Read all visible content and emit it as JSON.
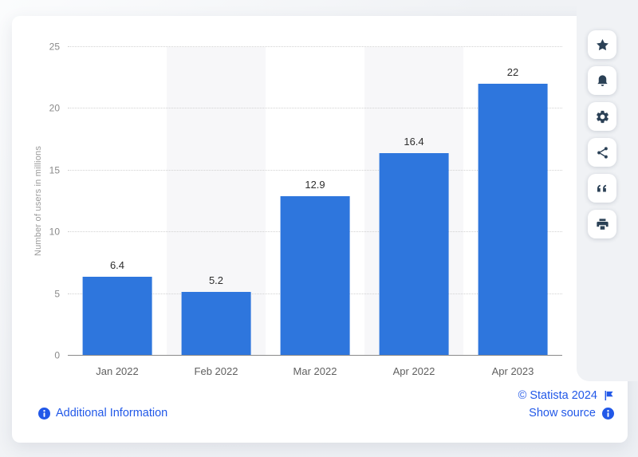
{
  "chart_data": {
    "type": "bar",
    "categories": [
      "Jan 2022",
      "Feb 2022",
      "Mar 2022",
      "Apr 2022",
      "Apr 2023"
    ],
    "values": [
      6.4,
      5.2,
      12.9,
      16.4,
      22
    ],
    "value_labels": [
      "6.4",
      "5.2",
      "12.9",
      "16.4",
      "22"
    ],
    "title": "",
    "xlabel": "",
    "ylabel": "Number of users in millions",
    "ylim": [
      0,
      25
    ],
    "yticks": [
      25,
      20,
      15,
      10,
      5,
      0
    ],
    "grid": "horizontal-dotted",
    "legend": "none",
    "bar_color": "#2e76dd",
    "band_color": "#f7f7f9",
    "banded_column_indexes": [
      1,
      3
    ]
  },
  "y_axis": {
    "title": "Number of users in millions"
  },
  "footer": {
    "additional_information": "Additional Information",
    "copyright": "© Statista 2024",
    "show_source": "Show source",
    "link_color": "#2158e8"
  },
  "toolbar": {
    "icon_color": "#2b4156",
    "buttons": [
      {
        "name": "favorite",
        "icon": "star-icon"
      },
      {
        "name": "alerts",
        "icon": "bell-icon"
      },
      {
        "name": "settings",
        "icon": "gear-icon"
      },
      {
        "name": "share",
        "icon": "share-icon"
      },
      {
        "name": "cite",
        "icon": "quote-icon"
      },
      {
        "name": "print",
        "icon": "printer-icon"
      }
    ]
  }
}
